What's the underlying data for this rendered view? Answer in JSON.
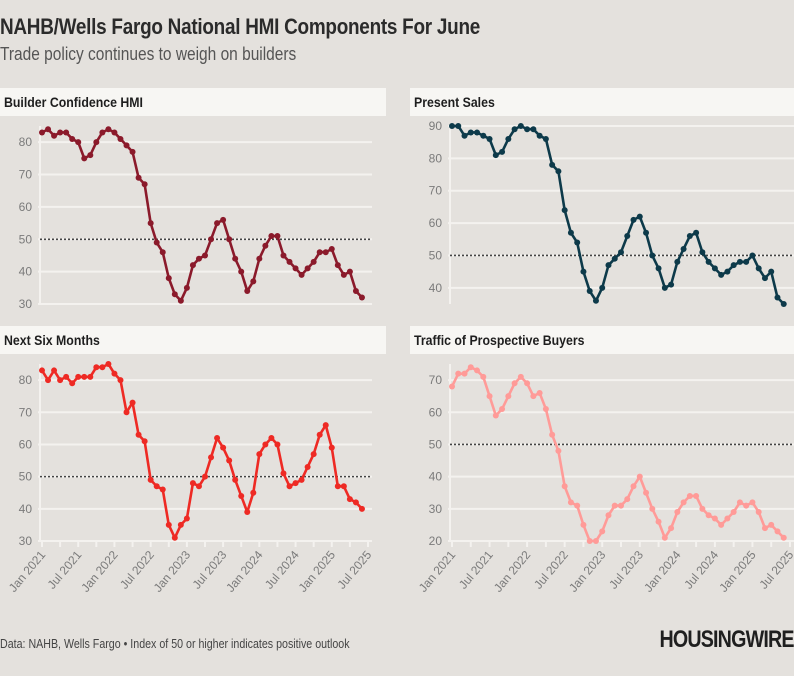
{
  "header": {
    "title": "NAHB/Wells Fargo National HMI Components For June",
    "subtitle": "Trade policy continues to weigh on builders"
  },
  "footer": {
    "source": "Data: NAHB, Wells Fargo • Index of 50 or higher indicates positive outlook",
    "logo": "HOUSINGWIRE"
  },
  "chart_data": [
    {
      "type": "line",
      "title": "Builder Confidence HMI",
      "color": "#8b1a2b",
      "x_start": "Jan 2021",
      "x_end": "Jun 2025",
      "frequency": "monthly",
      "ylim": [
        30,
        85
      ],
      "yticks": [
        30,
        40,
        50,
        60,
        70,
        80
      ],
      "reference_line": 50,
      "xticks": [],
      "values": [
        83,
        84,
        82,
        83,
        83,
        81,
        80,
        75,
        76,
        80,
        83,
        84,
        83,
        81,
        79,
        77,
        69,
        67,
        55,
        49,
        46,
        38,
        33,
        31,
        35,
        42,
        44,
        45,
        50,
        55,
        56,
        50,
        44,
        40,
        34,
        37,
        44,
        48,
        51,
        51,
        45,
        43,
        41,
        39,
        41,
        43,
        46,
        46,
        47,
        42,
        39,
        40,
        34,
        32
      ]
    },
    {
      "type": "line",
      "title": "Present Sales",
      "color": "#0d3a4a",
      "x_start": "Jan 2021",
      "x_end": "Jun 2025",
      "frequency": "monthly",
      "ylim": [
        35,
        90
      ],
      "yticks": [
        40,
        50,
        60,
        70,
        80,
        90
      ],
      "reference_line": 50,
      "xticks": [],
      "values": [
        90,
        90,
        87,
        88,
        88,
        87,
        86,
        81,
        82,
        86,
        89,
        90,
        89,
        89,
        87,
        86,
        78,
        76,
        64,
        57,
        54,
        45,
        39,
        36,
        40,
        47,
        49,
        51,
        56,
        61,
        62,
        57,
        50,
        46,
        40,
        41,
        48,
        52,
        56,
        57,
        51,
        48,
        46,
        44,
        45,
        47,
        48,
        48,
        50,
        46,
        43,
        45,
        37,
        35
      ]
    },
    {
      "type": "line",
      "title": "Next Six Months",
      "color": "#ee2a24",
      "x_start": "Jan 2021",
      "x_end": "Jun 2025",
      "frequency": "monthly",
      "ylim": [
        30,
        85
      ],
      "yticks": [
        30,
        40,
        50,
        60,
        70,
        80
      ],
      "reference_line": 50,
      "xticks": [
        "Jan 2021",
        "Jul 2021",
        "Jan 2022",
        "Jul 2022",
        "Jan 2023",
        "Jul 2023",
        "Jan 2024",
        "Jul 2024",
        "Jan 2025",
        "Jul 2025"
      ],
      "values": [
        83,
        80,
        83,
        80,
        81,
        79,
        81,
        81,
        81,
        84,
        84,
        85,
        82,
        80,
        70,
        73,
        63,
        61,
        49,
        47,
        46,
        35,
        31,
        35,
        37,
        48,
        47,
        50,
        56,
        62,
        59,
        55,
        49,
        44,
        39,
        45,
        57,
        60,
        62,
        60,
        51,
        47,
        48,
        49,
        53,
        57,
        63,
        66,
        59,
        47,
        47,
        43,
        42,
        40
      ]
    },
    {
      "type": "line",
      "title": "Traffic of Prospective Buyers",
      "color": "#ff9b98",
      "x_start": "Jan 2021",
      "x_end": "Jun 2025",
      "frequency": "monthly",
      "ylim": [
        20,
        75
      ],
      "yticks": [
        20,
        30,
        40,
        50,
        60,
        70
      ],
      "reference_line": 50,
      "xticks": [
        "Jan 2021",
        "Jul 2021",
        "Jan 2022",
        "Jul 2022",
        "Jan 2023",
        "Jul 2023",
        "Jan 2024",
        "Jul 2024",
        "Jan 2025",
        "Jul 2025"
      ],
      "values": [
        68,
        72,
        72,
        74,
        73,
        71,
        65,
        59,
        61,
        65,
        69,
        71,
        69,
        65,
        66,
        61,
        53,
        48,
        37,
        32,
        31,
        25,
        20,
        20,
        23,
        28,
        31,
        31,
        33,
        37,
        40,
        35,
        30,
        26,
        21,
        24,
        29,
        32,
        34,
        34,
        30,
        28,
        27,
        25,
        27,
        29,
        32,
        31,
        32,
        29,
        24,
        25,
        23,
        21
      ]
    }
  ]
}
